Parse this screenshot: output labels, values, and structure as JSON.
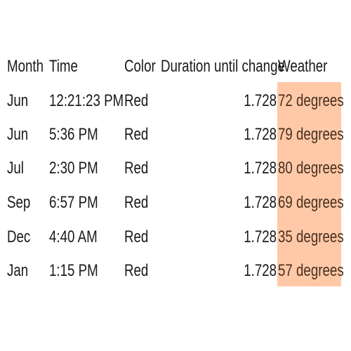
{
  "table": {
    "headers": {
      "month": "Month",
      "time": "Time",
      "color": "Color",
      "duration": "Duration until change",
      "weather": "Weather"
    },
    "rows": [
      {
        "month": "Jun",
        "time": "12:21:23 PM",
        "color": "Red",
        "duration": "1.728",
        "weather": "72 degrees"
      },
      {
        "month": "Jun",
        "time": "5:36 PM",
        "color": "Red",
        "duration": "1.728",
        "weather": "79 degrees"
      },
      {
        "month": "Jul",
        "time": "2:30 PM",
        "color": "Red",
        "duration": "1.728",
        "weather": "80 degrees"
      },
      {
        "month": "Sep",
        "time": "6:57 PM",
        "color": "Red",
        "duration": "1.728",
        "weather": "69 degrees"
      },
      {
        "month": "Dec",
        "time": "4:40 AM",
        "color": "Red",
        "duration": "1.728",
        "weather": "35 degrees"
      },
      {
        "month": "Jan",
        "time": "1:15 PM",
        "color": "Red",
        "duration": "1.728",
        "weather": "57 degrees"
      }
    ]
  },
  "colors": {
    "weather_highlight": "#ffc9a7",
    "text": "#1a1a1a"
  }
}
